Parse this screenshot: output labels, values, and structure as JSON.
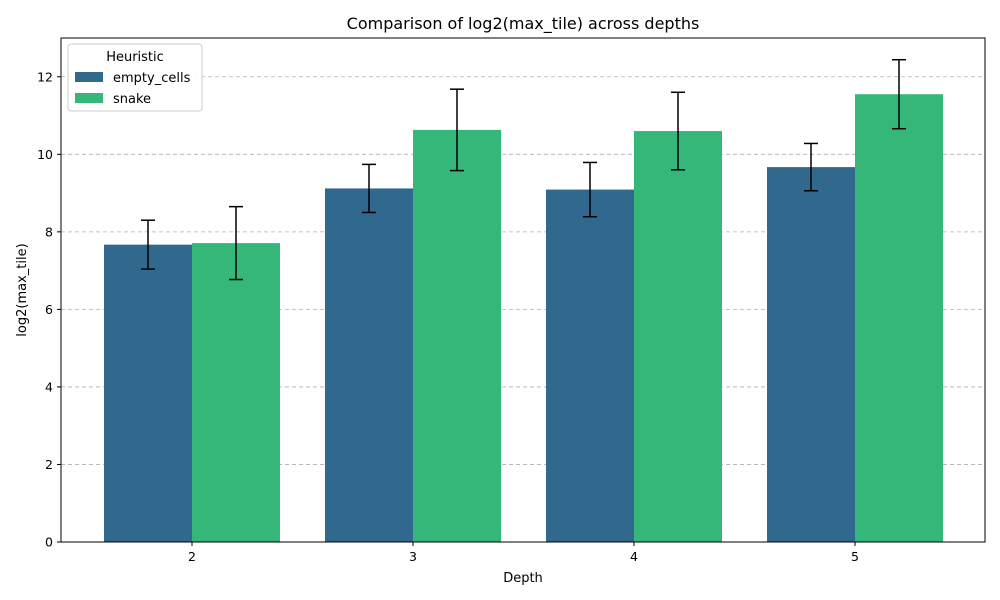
{
  "chart_data": {
    "type": "bar",
    "title": "Comparison of log2(max_tile) across depths",
    "xlabel": "Depth",
    "ylabel": "log2(max_tile)",
    "categories": [
      "2",
      "3",
      "4",
      "5"
    ],
    "ylim": [
      0,
      13
    ],
    "yticks": [
      0,
      2,
      4,
      6,
      8,
      10,
      12
    ],
    "grid": "y-dashed",
    "legend": {
      "title": "Heuristic",
      "placement": "top-left"
    },
    "series": [
      {
        "name": "empty_cells",
        "color": "#31688e",
        "values": [
          7.67,
          9.12,
          9.09,
          9.67
        ],
        "errors": [
          0.63,
          0.62,
          0.7,
          0.61
        ]
      },
      {
        "name": "snake",
        "color": "#35b779",
        "values": [
          7.71,
          10.63,
          10.6,
          11.55
        ],
        "errors": [
          0.94,
          1.05,
          1.0,
          0.89
        ]
      }
    ]
  }
}
